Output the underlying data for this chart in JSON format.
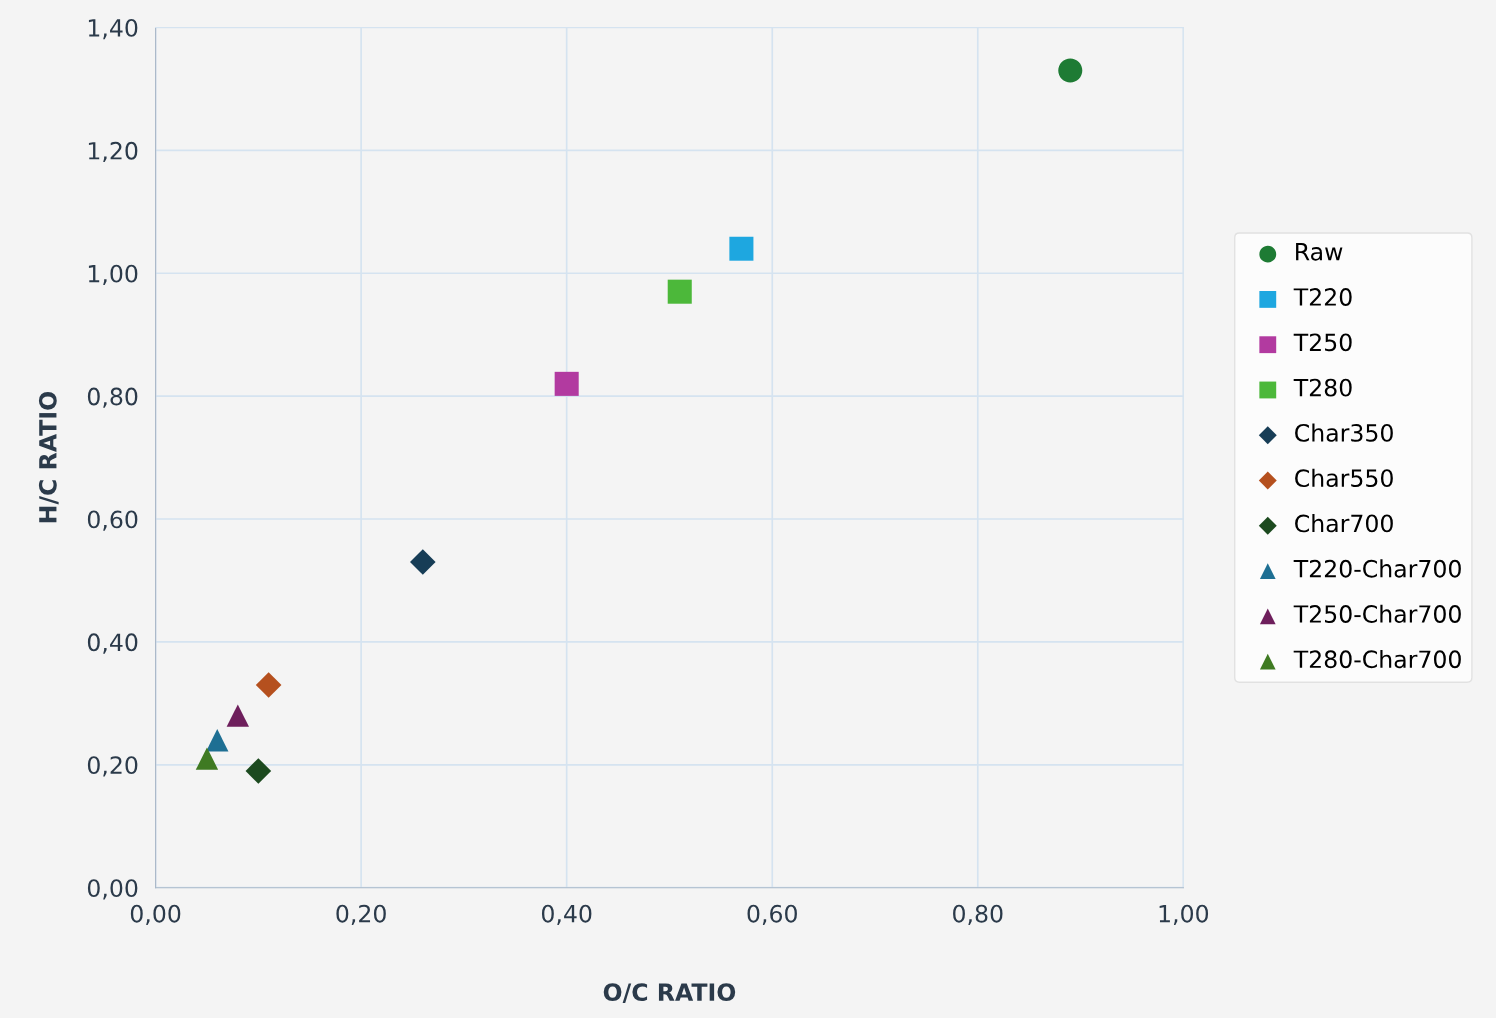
{
  "chart_data": {
    "type": "scatter",
    "xlabel": "O/C RATIO",
    "ylabel": "H/C RATIO",
    "xlim": [
      0,
      1
    ],
    "ylim": [
      0,
      1.4
    ],
    "xticks": [
      {
        "value": 0,
        "label": "0,00"
      },
      {
        "value": 0.2,
        "label": "0,20"
      },
      {
        "value": 0.4,
        "label": "0,40"
      },
      {
        "value": 0.6,
        "label": "0,60"
      },
      {
        "value": 0.8,
        "label": "0,80"
      },
      {
        "value": 1,
        "label": "1,00"
      }
    ],
    "yticks": [
      {
        "value": 0,
        "label": "0,00"
      },
      {
        "value": 0.2,
        "label": "0,20"
      },
      {
        "value": 0.4,
        "label": "0,40"
      },
      {
        "value": 0.6,
        "label": "0,60"
      },
      {
        "value": 0.8,
        "label": "0,80"
      },
      {
        "value": 1,
        "label": "1,00"
      },
      {
        "value": 1.2,
        "label": "1,20"
      },
      {
        "value": 1.4,
        "label": "1,40"
      }
    ],
    "grid": true,
    "legend": "right",
    "series": [
      {
        "name": "Raw",
        "color": "#1e7b34",
        "marker": "circle",
        "x": [
          0.89
        ],
        "values": [
          1.33
        ]
      },
      {
        "name": "T220",
        "color": "#1ea7e0",
        "marker": "square",
        "x": [
          0.57
        ],
        "values": [
          1.04
        ]
      },
      {
        "name": "T250",
        "color": "#b23aa0",
        "marker": "square",
        "x": [
          0.4
        ],
        "values": [
          0.82
        ]
      },
      {
        "name": "T280",
        "color": "#4cb83a",
        "marker": "square",
        "x": [
          0.51
        ],
        "values": [
          0.97
        ]
      },
      {
        "name": "Char350",
        "color": "#173d56",
        "marker": "diamond",
        "x": [
          0.26
        ],
        "values": [
          0.53
        ]
      },
      {
        "name": "Char550",
        "color": "#b5501e",
        "marker": "diamond",
        "x": [
          0.11
        ],
        "values": [
          0.33
        ]
      },
      {
        "name": "Char700",
        "color": "#1c4a1f",
        "marker": "diamond",
        "x": [
          0.1
        ],
        "values": [
          0.19
        ]
      },
      {
        "name": "T220-Char700",
        "color": "#1e6f93",
        "marker": "triangle",
        "x": [
          0.06
        ],
        "values": [
          0.24
        ]
      },
      {
        "name": "T250-Char700",
        "color": "#6e1f5c",
        "marker": "triangle",
        "x": [
          0.08
        ],
        "values": [
          0.28
        ]
      },
      {
        "name": "T280-Char700",
        "color": "#3f7a22",
        "marker": "triangle",
        "x": [
          0.05
        ],
        "values": [
          0.21
        ]
      }
    ]
  }
}
